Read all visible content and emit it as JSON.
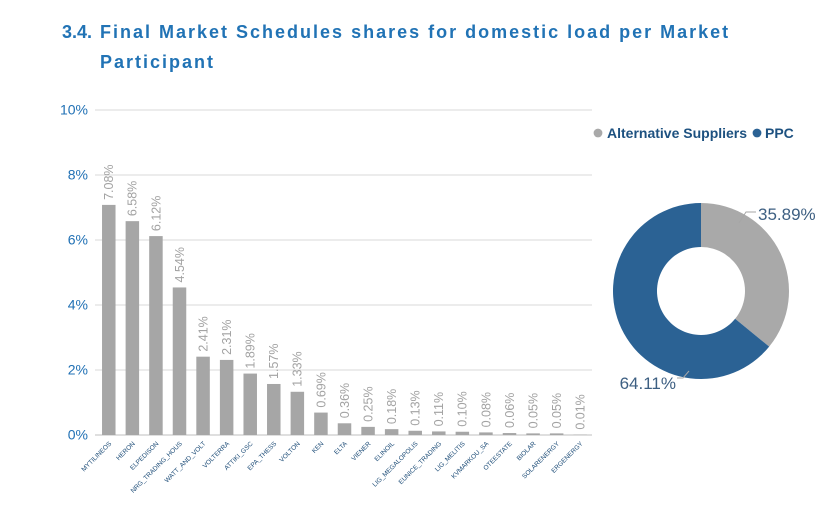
{
  "heading": {
    "number": "3.4.",
    "title": "Final Market Schedules shares for domestic load per Market Participant"
  },
  "colors": {
    "title_blue": "#2173B5",
    "axis_label_blue": "#2171B5",
    "category_label_blue": "#1F4E79",
    "legend_text_blue": "#1D5180",
    "bar_gray": "#A6A6A6",
    "value_label_gray": "#A3A3A3",
    "gridline_gray": "#D9D9D9",
    "axis_line_gray": "#BFBFBF",
    "donut_blue": "#2B6294",
    "donut_gray": "#A9A9A9",
    "donut_label_color": "#3D5F82",
    "leader_line_gray": "#A6A6A6"
  },
  "chart_data": [
    {
      "type": "bar",
      "title": "",
      "xlabel": "",
      "ylabel": "",
      "ylim": [
        0,
        10
      ],
      "yticks": [
        "0%",
        "2%",
        "4%",
        "6%",
        "8%",
        "10%"
      ],
      "grid": true,
      "categories": [
        "MYTILINEOS",
        "HERON",
        "ELPEDISON",
        "NRG_TRADING_HOUS",
        "WATT_AND_VOLT",
        "VOLTERRA",
        "ATTIKI_GSC",
        "EPA_THESS",
        "VOLTON",
        "KEN",
        "ELTA",
        "VIENER",
        "ELINOIL",
        "LIG_MEGALOPOLIS",
        "EUNICE_TRADING",
        "LIG_MELITIS",
        "KVMARKOU_SA",
        "OTEESTATE",
        "BIOLAR",
        "SOLARENERGY",
        "ERGENERGY"
      ],
      "values": [
        7.08,
        6.58,
        6.12,
        4.54,
        2.41,
        2.31,
        1.89,
        1.57,
        1.33,
        0.69,
        0.36,
        0.25,
        0.18,
        0.13,
        0.11,
        0.1,
        0.08,
        0.06,
        0.05,
        0.05,
        0.01
      ],
      "value_labels": [
        "7.08%",
        "6.58%",
        "6.12%",
        "4.54%",
        "2.41%",
        "2.31%",
        "1.89%",
        "1.57%",
        "1.33%",
        "0.69%",
        "0.36%",
        "0.25%",
        "0.18%",
        "0.13%",
        "0.11%",
        "0.10%",
        "0.08%",
        "0.06%",
        "0.05%",
        "0.05%",
        "0.01%"
      ]
    },
    {
      "type": "pie",
      "donut": true,
      "legend_position": "top-right",
      "series": [
        {
          "name": "Alternative Suppliers",
          "value": 35.89,
          "label": "35.89%"
        },
        {
          "name": "PPC",
          "value": 64.11,
          "label": "64.11%"
        }
      ]
    }
  ]
}
